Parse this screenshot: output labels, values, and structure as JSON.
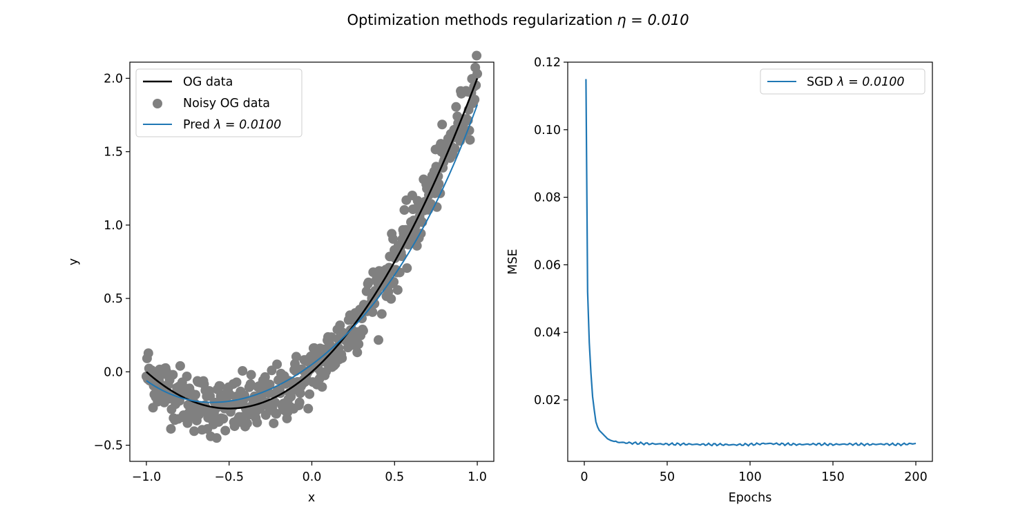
{
  "title": "Optimization methods regularization",
  "title_math": "η = 0.010",
  "chart_data": [
    {
      "type": "scatter",
      "xlabel": "x",
      "ylabel": "y",
      "xlim": [
        -1.1,
        1.1
      ],
      "ylim": [
        -0.61,
        2.11
      ],
      "xticks": [
        -1.0,
        -0.5,
        0.0,
        0.5,
        1.0
      ],
      "xtick_labels": [
        "−1.0",
        "−0.5",
        "0.0",
        "0.5",
        "1.0"
      ],
      "yticks": [
        -0.5,
        0.0,
        0.5,
        1.0,
        1.5,
        2.0
      ],
      "ytick_labels": [
        "−0.5",
        "0.0",
        "0.5",
        "1.0",
        "1.5",
        "2.0"
      ],
      "grid": false,
      "legend_position": "upper-left",
      "series": [
        {
          "name": "OG data",
          "kind": "line",
          "color": "#000000",
          "model": "x^2 + x"
        },
        {
          "name": "Noisy OG data",
          "kind": "scatter",
          "color": "#808080",
          "points": 500,
          "noise_sd": 0.1
        },
        {
          "name": "Pred λ = 0.0100",
          "legend_prefix": "Pred",
          "legend_math": "λ = 0.0100",
          "kind": "line",
          "color": "#1f77b4",
          "x": [
            -1.0,
            -0.5,
            0.0,
            0.5,
            1.0
          ],
          "y": [
            -0.06,
            -0.2,
            0.05,
            0.66,
            1.82
          ]
        }
      ]
    },
    {
      "type": "line",
      "xlabel": "Epochs",
      "ylabel": "MSE",
      "xlim": [
        -10,
        210
      ],
      "ylim": [
        0.0018,
        0.12
      ],
      "xticks": [
        0,
        50,
        100,
        150,
        200
      ],
      "xtick_labels": [
        "0",
        "50",
        "100",
        "150",
        "200"
      ],
      "yticks": [
        0.02,
        0.04,
        0.06,
        0.08,
        0.1,
        0.12
      ],
      "ytick_labels": [
        "0.02",
        "0.04",
        "0.06",
        "0.08",
        "0.10",
        "0.12"
      ],
      "grid": false,
      "legend_position": "upper-right",
      "series": [
        {
          "name": "SGD λ = 0.0100",
          "legend_prefix": "SGD",
          "legend_math": "λ = 0.0100",
          "color": "#1f77b4",
          "x": [
            1,
            2,
            3,
            4,
            5,
            6,
            7,
            8,
            9,
            10,
            12,
            14,
            16,
            18,
            20,
            25,
            30,
            40,
            50,
            60,
            70,
            80,
            90,
            100,
            110,
            120,
            130,
            140,
            150,
            160,
            170,
            180,
            190,
            200
          ],
          "y": [
            0.115,
            0.052,
            0.037,
            0.028,
            0.021,
            0.017,
            0.0135,
            0.012,
            0.011,
            0.0105,
            0.0095,
            0.0085,
            0.008,
            0.0077,
            0.0075,
            0.0073,
            0.0072,
            0.007,
            0.0069,
            0.0069,
            0.0068,
            0.0068,
            0.0067,
            0.0068,
            0.0071,
            0.0069,
            0.0068,
            0.0069,
            0.0068,
            0.0069,
            0.0068,
            0.0069,
            0.0068,
            0.0071
          ]
        }
      ]
    }
  ]
}
